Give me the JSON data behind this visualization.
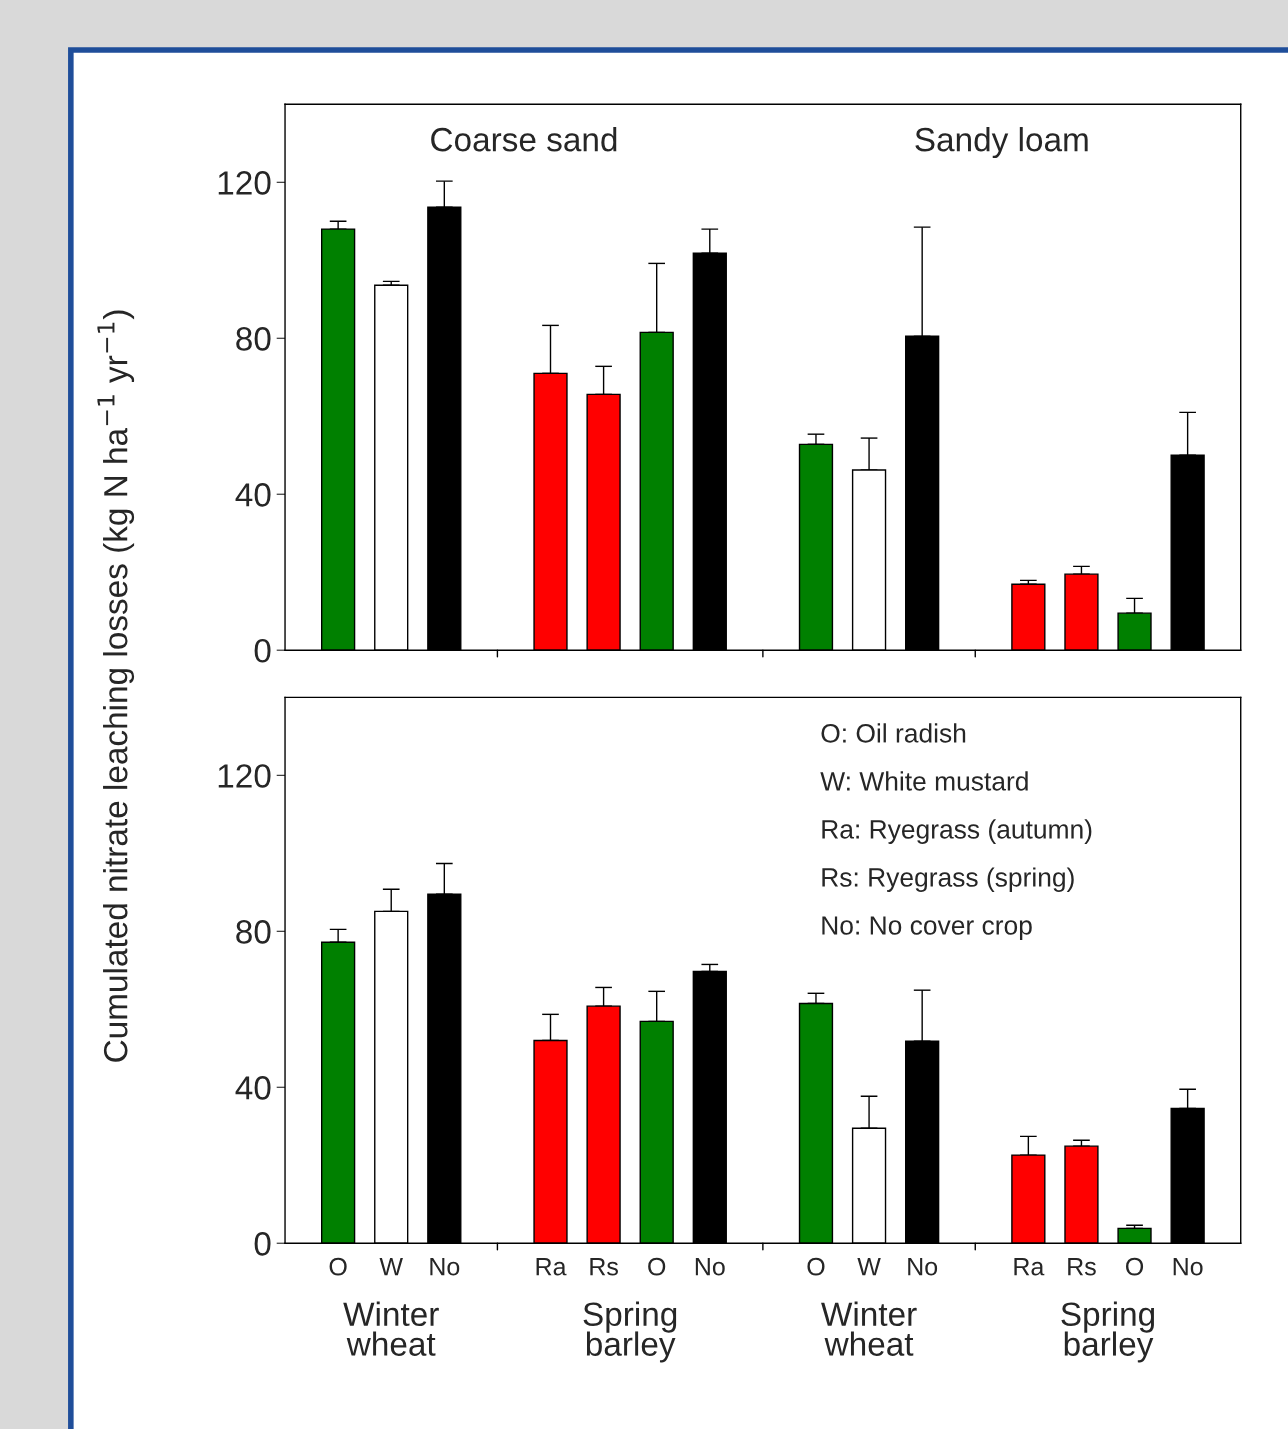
{
  "chart_data": [
    {
      "type": "bar",
      "ylabel": "Cumulated nitrate leaching losses (kg N ha$^{−1}$ yr$^{−1}$)",
      "categories": [
        null,
        null,
        null,
        null,
        null,
        null,
        null,
        null,
        null,
        null,
        null,
        null,
        null,
        null,
        null,
        null,
        null
      ],
      "values": [
        108,
        93.6,
        113.6,
        null,
        71,
        65.6,
        81.5,
        101.8,
        null,
        52.8,
        46.2,
        80.5,
        null,
        16.9,
        19.5,
        9.5,
        50
      ],
      "errors": [
        [
          108,
          110
        ],
        [
          93.6,
          94.6
        ],
        [
          113.6,
          120.3
        ],
        null,
        [
          71,
          83.3
        ],
        [
          65.6,
          72.8
        ],
        [
          81.5,
          99.2
        ],
        [
          101.8,
          108
        ],
        null,
        [
          52.8,
          55.4
        ],
        [
          46.2,
          54.4
        ],
        [
          80.5,
          108.5
        ],
        null,
        [
          16.9,
          17.9
        ],
        [
          19.5,
          21.5
        ],
        [
          9.5,
          13.3
        ],
        [
          50,
          61
        ]
      ],
      "colors": [
        "#008000",
        "#ffffff",
        "#000000",
        null,
        "#ff0000",
        "#ff0000",
        "#008000",
        "#000000",
        null,
        "#008000",
        "#ffffff",
        "#000000",
        null,
        "#ff0000",
        "#ff0000",
        "#008000",
        "#000000"
      ],
      "ylim": [
        0,
        140
      ],
      "yticks": [
        0,
        40,
        80,
        120
      ],
      "tick_labels": "y",
      "annotations": [
        "Coarse sand",
        "Sandy loam"
      ]
    },
    {
      "type": "bar",
      "categories": [
        "O",
        "W",
        "No",
        null,
        "Ra",
        "Rs",
        "O",
        "No",
        null,
        "O",
        "W",
        "No",
        null,
        "Ra",
        "Rs",
        "O",
        "No"
      ],
      "values": [
        77.2,
        85.1,
        89.5,
        null,
        52,
        60.8,
        56.9,
        69.7,
        null,
        61.5,
        29.5,
        51.8,
        null,
        22.6,
        24.9,
        3.8,
        34.6
      ],
      "errors": [
        [
          77.2,
          80.5
        ],
        [
          85.1,
          90.8
        ],
        [
          89.5,
          97.4
        ],
        null,
        [
          52,
          58.7
        ],
        [
          60.8,
          65.6
        ],
        [
          56.9,
          64.6
        ],
        [
          69.7,
          71.5
        ],
        null,
        [
          61.5,
          64.1
        ],
        [
          29.5,
          37.7
        ],
        [
          51.8,
          64.9
        ],
        null,
        [
          22.6,
          27.4
        ],
        [
          24.9,
          26.4
        ],
        [
          3.8,
          4.6
        ],
        [
          34.6,
          39.5
        ]
      ],
      "colors": [
        "#008000",
        "#ffffff",
        "#000000",
        null,
        "#ff0000",
        "#ff0000",
        "#008000",
        "#000000",
        null,
        "#008000",
        "#ffffff",
        "#000000",
        null,
        "#ff0000",
        "#ff0000",
        "#008000",
        "#000000"
      ],
      "ylim": [
        0,
        140
      ],
      "yticks": [
        0,
        40,
        80,
        120
      ],
      "annotations": [
        "Winter wheat",
        "Spring barley",
        "Winter wheat",
        "Spring barley",
        "O: Oil radish",
        "W: White mustard",
        "Ra: Ryegrass (autumn)",
        "Rs: Ryegrass (spring)",
        "No: No cover crop"
      ]
    }
  ]
}
